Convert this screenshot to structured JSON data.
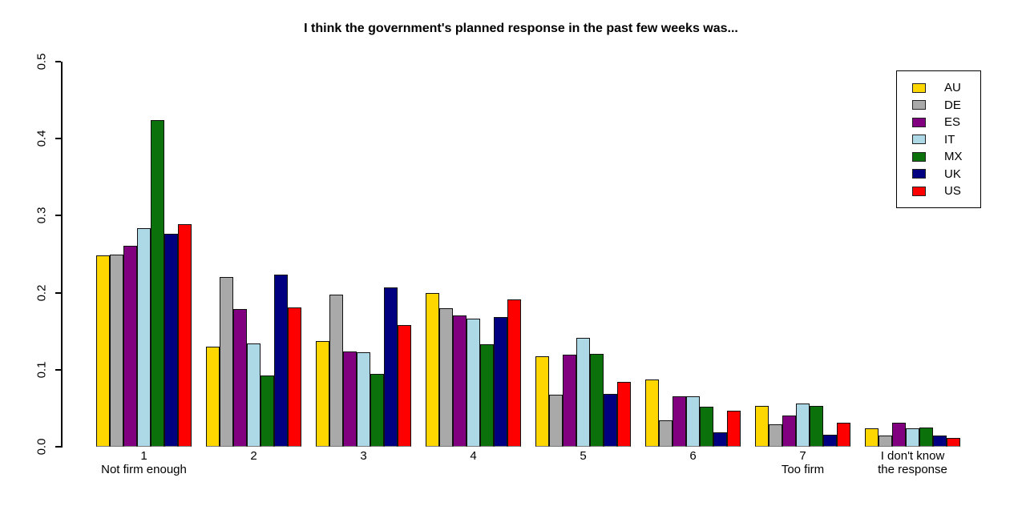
{
  "chart_data": {
    "type": "bar",
    "title": "I think the government's planned response in the past few weeks was...",
    "categories": [
      "1",
      "2",
      "3",
      "4",
      "5",
      "6",
      "7",
      "I don't know"
    ],
    "category_sublabels": [
      "Not firm enough",
      "",
      "",
      "",
      "",
      "",
      "Too firm",
      "the response"
    ],
    "series": [
      {
        "name": "AU",
        "color": "#FFD700",
        "values": [
          0.248,
          0.13,
          0.137,
          0.2,
          0.117,
          0.087,
          0.053,
          0.024
        ]
      },
      {
        "name": "DE",
        "color": "#A9A9A9",
        "values": [
          0.249,
          0.22,
          0.198,
          0.18,
          0.068,
          0.034,
          0.029,
          0.015
        ]
      },
      {
        "name": "ES",
        "color": "#800080",
        "values": [
          0.261,
          0.179,
          0.124,
          0.17,
          0.12,
          0.066,
          0.041,
          0.031
        ]
      },
      {
        "name": "IT",
        "color": "#ADD8E6",
        "values": [
          0.284,
          0.134,
          0.123,
          0.166,
          0.141,
          0.065,
          0.056,
          0.024
        ]
      },
      {
        "name": "MX",
        "color": "#0B720B",
        "values": [
          0.424,
          0.093,
          0.095,
          0.133,
          0.121,
          0.052,
          0.053,
          0.025
        ]
      },
      {
        "name": "UK",
        "color": "#000080",
        "values": [
          0.277,
          0.223,
          0.207,
          0.168,
          0.069,
          0.019,
          0.016,
          0.015
        ]
      },
      {
        "name": "US",
        "color": "#FF0000",
        "values": [
          0.289,
          0.181,
          0.158,
          0.191,
          0.084,
          0.047,
          0.031,
          0.011
        ]
      }
    ],
    "ylim": [
      0,
      0.5
    ],
    "yticks": [
      0.0,
      0.1,
      0.2,
      0.3,
      0.4,
      0.5
    ],
    "ytick_label_rotation": 90,
    "grid": false,
    "legend_position": "top-right",
    "axis_color": "#000000",
    "background_color": "#ffffff"
  }
}
